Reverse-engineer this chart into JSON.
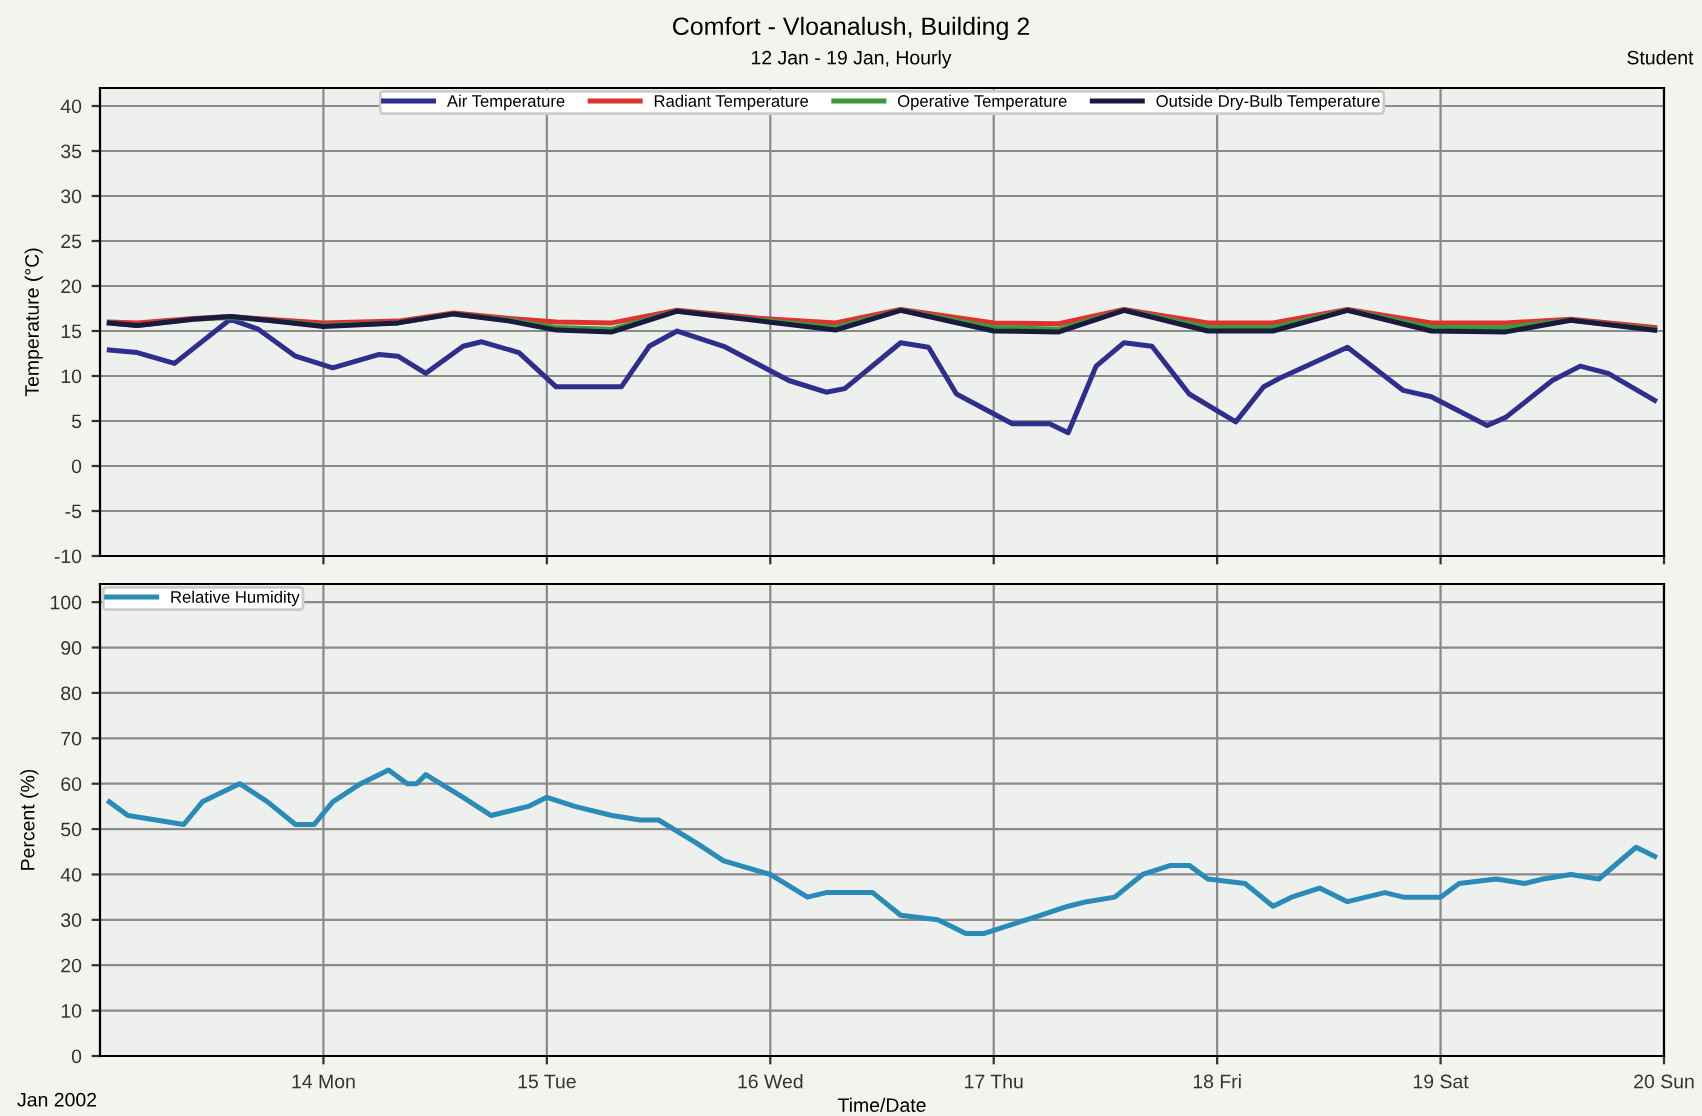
{
  "chart_data": [
    {
      "type": "line",
      "title": "Comfort - Vloanalush, Building 2",
      "subtitle": "12 Jan - 19 Jan, Hourly",
      "ylabel": "Temperature (°C)",
      "annotations": [
        "Student"
      ],
      "xlim": [
        "2002-01-13T00:00",
        "2002-01-20T00:00"
      ],
      "xticks": [
        {
          "value": "2002-01-14",
          "label": null
        },
        {
          "value": "2002-01-15",
          "label": null
        },
        {
          "value": "2002-01-16",
          "label": null
        },
        {
          "value": "2002-01-17",
          "label": null
        },
        {
          "value": "2002-01-18",
          "label": null
        },
        {
          "value": "2002-01-19",
          "label": null
        },
        {
          "value": "2002-01-20",
          "label": null
        }
      ],
      "ylim": [
        -10,
        42
      ],
      "yticks": [
        -10,
        -5,
        0,
        5,
        10,
        15,
        20,
        25,
        30,
        35,
        40
      ],
      "grid": true,
      "legend": "top",
      "tick_labels": "y",
      "series": [
        {
          "name": "Air Temperature",
          "color": "#2e2e8c",
          "x": [
            "2002-01-13T01:00",
            "2002-01-13T04:00",
            "2002-01-13T08:00",
            "2002-01-13T14:00",
            "2002-01-13T17:00",
            "2002-01-13T21:00",
            "2002-01-14T01:00",
            "2002-01-14T06:00",
            "2002-01-14T08:00",
            "2002-01-14T11:00",
            "2002-01-14T15:00",
            "2002-01-14T17:00",
            "2002-01-14T21:00",
            "2002-01-15T01:00",
            "2002-01-15T08:00",
            "2002-01-15T11:00",
            "2002-01-15T14:00",
            "2002-01-15T19:00",
            "2002-01-16T02:00",
            "2002-01-16T06:00",
            "2002-01-16T08:00",
            "2002-01-16T14:00",
            "2002-01-16T17:00",
            "2002-01-16T20:00",
            "2002-01-17T02:00",
            "2002-01-17T06:00",
            "2002-01-17T08:00",
            "2002-01-17T11:00",
            "2002-01-17T14:00",
            "2002-01-17T17:00",
            "2002-01-17T21:00",
            "2002-01-18T02:00",
            "2002-01-18T05:00",
            "2002-01-18T07:00",
            "2002-01-18T14:00",
            "2002-01-18T20:00",
            "2002-01-18T23:00",
            "2002-01-19T05:00",
            "2002-01-19T07:00",
            "2002-01-19T12:00",
            "2002-01-19T15:00",
            "2002-01-19T18:00",
            "2002-01-19T23:00"
          ],
          "values": [
            12.9,
            12.6,
            11.4,
            16.3,
            15.2,
            12.2,
            10.9,
            12.4,
            12.2,
            10.3,
            13.3,
            13.8,
            12.6,
            8.8,
            8.8,
            13.3,
            15.0,
            13.3,
            9.5,
            8.2,
            8.6,
            13.7,
            13.2,
            8.0,
            4.7,
            4.7,
            3.7,
            11.1,
            13.7,
            13.3,
            8.0,
            4.9,
            8.8,
            9.9,
            13.2,
            8.4,
            7.7,
            4.5,
            5.4,
            9.5,
            11.1,
            10.3,
            7.3
          ]
        },
        {
          "name": "Radiant Temperature",
          "color": "#e03030",
          "x": [
            "2002-01-13T01:00",
            "2002-01-13T04:00",
            "2002-01-13T10:00",
            "2002-01-13T14:00",
            "2002-01-13T18:00",
            "2002-01-14T00:00",
            "2002-01-14T08:00",
            "2002-01-14T14:00",
            "2002-01-14T20:00",
            "2002-01-15T01:00",
            "2002-01-15T07:00",
            "2002-01-15T14:00",
            "2002-01-15T23:00",
            "2002-01-16T07:00",
            "2002-01-16T14:00",
            "2002-01-17T00:00",
            "2002-01-17T07:00",
            "2002-01-17T14:00",
            "2002-01-17T23:00",
            "2002-01-18T06:00",
            "2002-01-18T14:00",
            "2002-01-18T23:00",
            "2002-01-19T07:00",
            "2002-01-19T14:00",
            "2002-01-19T23:00"
          ],
          "values": [
            16.0,
            15.9,
            16.4,
            16.6,
            16.3,
            15.9,
            16.1,
            17.0,
            16.4,
            16.0,
            15.9,
            17.3,
            16.4,
            15.9,
            17.4,
            15.9,
            15.8,
            17.4,
            15.9,
            15.9,
            17.4,
            15.9,
            15.9,
            16.3,
            15.4
          ]
        },
        {
          "name": "Operative Temperature",
          "color": "#3a9a3a",
          "x": [
            "2002-01-13T01:00",
            "2002-01-13T04:00",
            "2002-01-13T10:00",
            "2002-01-13T14:00",
            "2002-01-13T18:00",
            "2002-01-14T00:00",
            "2002-01-14T08:00",
            "2002-01-14T14:00",
            "2002-01-14T20:00",
            "2002-01-15T01:00",
            "2002-01-15T07:00",
            "2002-01-15T14:00",
            "2002-01-15T23:00",
            "2002-01-16T07:00",
            "2002-01-16T14:00",
            "2002-01-17T00:00",
            "2002-01-17T07:00",
            "2002-01-17T14:00",
            "2002-01-17T23:00",
            "2002-01-18T06:00",
            "2002-01-18T14:00",
            "2002-01-18T23:00",
            "2002-01-19T07:00",
            "2002-01-19T14:00",
            "2002-01-19T23:00"
          ],
          "values": [
            15.9,
            15.6,
            16.3,
            16.5,
            16.2,
            15.6,
            15.9,
            16.9,
            16.2,
            15.4,
            15.2,
            17.2,
            16.2,
            15.4,
            17.3,
            15.4,
            15.2,
            17.3,
            15.4,
            15.4,
            17.3,
            15.4,
            15.4,
            16.2,
            15.2
          ]
        },
        {
          "name": "Outside Dry-Bulb Temperature",
          "color": "#1a1a40",
          "x": [
            "2002-01-13T01:00",
            "2002-01-13T04:00",
            "2002-01-13T10:00",
            "2002-01-13T14:00",
            "2002-01-13T18:00",
            "2002-01-14T00:00",
            "2002-01-14T08:00",
            "2002-01-14T14:00",
            "2002-01-14T20:00",
            "2002-01-15T01:00",
            "2002-01-15T07:00",
            "2002-01-15T14:00",
            "2002-01-15T23:00",
            "2002-01-16T07:00",
            "2002-01-16T14:00",
            "2002-01-17T00:00",
            "2002-01-17T07:00",
            "2002-01-17T14:00",
            "2002-01-17T23:00",
            "2002-01-18T06:00",
            "2002-01-18T14:00",
            "2002-01-18T23:00",
            "2002-01-19T07:00",
            "2002-01-19T14:00",
            "2002-01-19T23:00"
          ],
          "values": [
            15.9,
            15.6,
            16.3,
            16.6,
            16.2,
            15.5,
            15.9,
            16.9,
            16.1,
            15.1,
            14.9,
            17.2,
            16.1,
            15.1,
            17.3,
            15.0,
            14.9,
            17.3,
            15.0,
            15.0,
            17.3,
            15.0,
            14.9,
            16.2,
            15.1
          ]
        }
      ]
    },
    {
      "type": "line",
      "ylabel": "Percent (%)",
      "xlabel": "Time/Date",
      "annotations": [
        "Jan 2002"
      ],
      "xlim": [
        "2002-01-13T00:00",
        "2002-01-20T00:00"
      ],
      "xticks": [
        {
          "value": "2002-01-14",
          "label": "14 Mon"
        },
        {
          "value": "2002-01-15",
          "label": "15 Tue"
        },
        {
          "value": "2002-01-16",
          "label": "16 Wed"
        },
        {
          "value": "2002-01-17",
          "label": "17 Thu"
        },
        {
          "value": "2002-01-18",
          "label": "18 Fri"
        },
        {
          "value": "2002-01-19",
          "label": "19 Sat"
        },
        {
          "value": "2002-01-20",
          "label": "20 Sun"
        }
      ],
      "ylim": [
        0,
        104
      ],
      "yticks": [
        0,
        10,
        20,
        30,
        40,
        50,
        60,
        70,
        80,
        90,
        100
      ],
      "grid": true,
      "legend": "top left",
      "series": [
        {
          "name": "Relative Humidity",
          "color": "#2a8ab8",
          "x": [
            "2002-01-13T01:00",
            "2002-01-13T03:00",
            "2002-01-13T06:00",
            "2002-01-13T09:00",
            "2002-01-13T11:00",
            "2002-01-13T14:00",
            "2002-01-13T15:00",
            "2002-01-13T18:00",
            "2002-01-13T21:00",
            "2002-01-13T23:00",
            "2002-01-14T01:00",
            "2002-01-14T04:00",
            "2002-01-14T07:00",
            "2002-01-14T09:00",
            "2002-01-14T10:00",
            "2002-01-14T11:00",
            "2002-01-14T15:00",
            "2002-01-14T18:00",
            "2002-01-14T22:00",
            "2002-01-15T00:00",
            "2002-01-15T03:00",
            "2002-01-15T07:00",
            "2002-01-15T10:00",
            "2002-01-15T12:00",
            "2002-01-15T16:00",
            "2002-01-15T19:00",
            "2002-01-16T00:00",
            "2002-01-16T04:00",
            "2002-01-16T06:00",
            "2002-01-16T11:00",
            "2002-01-16T14:00",
            "2002-01-16T18:00",
            "2002-01-16T21:00",
            "2002-01-16T23:00",
            "2002-01-17T02:00",
            "2002-01-17T05:00",
            "2002-01-17T08:00",
            "2002-01-17T10:00",
            "2002-01-17T13:00",
            "2002-01-17T16:00",
            "2002-01-17T19:00",
            "2002-01-17T21:00",
            "2002-01-17T23:00",
            "2002-01-18T03:00",
            "2002-01-18T06:00",
            "2002-01-18T08:00",
            "2002-01-18T11:00",
            "2002-01-18T14:00",
            "2002-01-18T18:00",
            "2002-01-18T20:00",
            "2002-01-19T00:00",
            "2002-01-19T02:00",
            "2002-01-19T06:00",
            "2002-01-19T09:00",
            "2002-01-19T11:00",
            "2002-01-19T14:00",
            "2002-01-19T17:00",
            "2002-01-19T21:00",
            "2002-01-19T23:00"
          ],
          "values": [
            56,
            53,
            52,
            51,
            56,
            59,
            60,
            56,
            51,
            51,
            56,
            60,
            63,
            60,
            60,
            62,
            57,
            53,
            55,
            57,
            55,
            53,
            52,
            52,
            47,
            43,
            40,
            35,
            36,
            36,
            31,
            30,
            27,
            27,
            29,
            31,
            33,
            34,
            35,
            40,
            42,
            42,
            39,
            38,
            33,
            35,
            37,
            34,
            36,
            35,
            35,
            38,
            39,
            38,
            39,
            40,
            39,
            46,
            44
          ]
        }
      ]
    }
  ]
}
